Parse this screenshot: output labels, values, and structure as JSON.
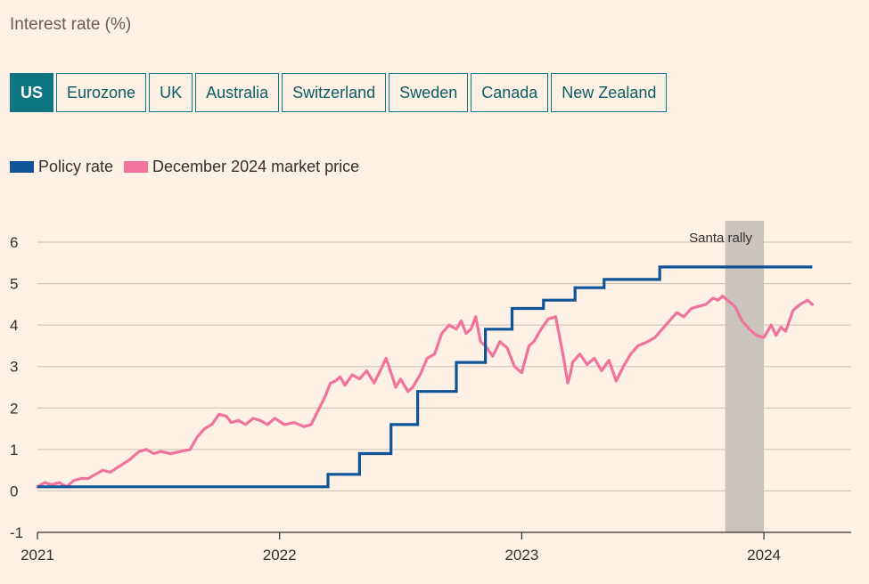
{
  "title": "Interest rate (%)",
  "tabs": [
    {
      "label": "US",
      "active": true
    },
    {
      "label": "Eurozone",
      "active": false
    },
    {
      "label": "UK",
      "active": false
    },
    {
      "label": "Australia",
      "active": false
    },
    {
      "label": "Switzerland",
      "active": false
    },
    {
      "label": "Sweden",
      "active": false
    },
    {
      "label": "Canada",
      "active": false
    },
    {
      "label": "New Zealand",
      "active": false
    }
  ],
  "colors": {
    "background": "#fdf0e4",
    "policy": "#0f5499",
    "market": "#f0739c",
    "shade": "#cbc3bd",
    "grid": "#ccc1b7",
    "tab_active": "#0d7680"
  },
  "chart_data": {
    "type": "line",
    "title": "Interest rate (%)",
    "xlabel": "",
    "ylabel": "",
    "xlim": [
      2021.0,
      2024.25
    ],
    "ylim": [
      -1,
      6
    ],
    "yticks": [
      -1,
      0,
      1,
      2,
      3,
      4,
      5,
      6
    ],
    "ytick_labels": [
      "-1",
      "0",
      "1",
      "2",
      "3",
      "4",
      "5",
      "6"
    ],
    "xticks": [
      2021,
      2022,
      2023,
      2024
    ],
    "xtick_labels": [
      "2021",
      "2022",
      "2023",
      "2024"
    ],
    "grid": true,
    "legend_position": "top-left",
    "annotations": [
      {
        "text": "Santa rally",
        "x_start": 2023.84,
        "x_end": 2024.0
      }
    ],
    "series": [
      {
        "name": "Policy rate",
        "style": "step",
        "x": [
          2021.0,
          2022.2,
          2022.33,
          2022.46,
          2022.57,
          2022.73,
          2022.85,
          2022.96,
          2023.09,
          2023.22,
          2023.34,
          2023.57,
          2024.2
        ],
        "values": [
          0.1,
          0.4,
          0.9,
          1.6,
          2.4,
          3.1,
          3.9,
          4.4,
          4.6,
          4.9,
          5.1,
          5.4,
          5.4
        ]
      },
      {
        "name": "December 2024 market price",
        "style": "line",
        "x": [
          2021.0,
          2021.03,
          2021.06,
          2021.09,
          2021.12,
          2021.15,
          2021.18,
          2021.21,
          2021.24,
          2021.27,
          2021.3,
          2021.34,
          2021.38,
          2021.42,
          2021.45,
          2021.48,
          2021.51,
          2021.55,
          2021.59,
          2021.63,
          2021.66,
          2021.69,
          2021.72,
          2021.75,
          2021.78,
          2021.8,
          2021.83,
          2021.86,
          2021.89,
          2021.92,
          2021.95,
          2021.98,
          2022.02,
          2022.06,
          2022.1,
          2022.13,
          2022.16,
          2022.19,
          2022.21,
          2022.23,
          2022.25,
          2022.27,
          2022.3,
          2022.33,
          2022.36,
          2022.39,
          2022.42,
          2022.44,
          2022.46,
          2022.48,
          2022.5,
          2022.53,
          2022.55,
          2022.58,
          2022.61,
          2022.64,
          2022.67,
          2022.7,
          2022.73,
          2022.75,
          2022.77,
          2022.79,
          2022.81,
          2022.83,
          2022.85,
          2022.88,
          2022.91,
          2022.94,
          2022.97,
          2023.0,
          2023.03,
          2023.05,
          2023.08,
          2023.11,
          2023.14,
          2023.17,
          2023.19,
          2023.2,
          2023.21,
          2023.24,
          2023.27,
          2023.3,
          2023.33,
          2023.36,
          2023.39,
          2023.42,
          2023.45,
          2023.48,
          2023.52,
          2023.55,
          2023.58,
          2023.61,
          2023.64,
          2023.67,
          2023.7,
          2023.73,
          2023.76,
          2023.79,
          2023.81,
          2023.83,
          2023.85,
          2023.88,
          2023.91,
          2023.94,
          2023.97,
          2024.0,
          2024.03,
          2024.05,
          2024.07,
          2024.09,
          2024.12,
          2024.15,
          2024.18,
          2024.2
        ],
        "values": [
          0.1,
          0.2,
          0.15,
          0.2,
          0.1,
          0.25,
          0.3,
          0.3,
          0.4,
          0.5,
          0.45,
          0.6,
          0.75,
          0.95,
          1.0,
          0.9,
          0.95,
          0.9,
          0.95,
          1.0,
          1.3,
          1.5,
          1.6,
          1.85,
          1.8,
          1.65,
          1.7,
          1.6,
          1.75,
          1.7,
          1.6,
          1.75,
          1.6,
          1.65,
          1.55,
          1.6,
          1.95,
          2.3,
          2.6,
          2.65,
          2.75,
          2.55,
          2.8,
          2.7,
          2.9,
          2.6,
          2.95,
          3.2,
          2.85,
          2.5,
          2.7,
          2.4,
          2.5,
          2.8,
          3.2,
          3.3,
          3.8,
          4.0,
          3.9,
          4.1,
          3.8,
          3.9,
          4.2,
          3.6,
          3.5,
          3.25,
          3.6,
          3.45,
          3.0,
          2.85,
          3.5,
          3.6,
          3.9,
          4.15,
          4.2,
          3.3,
          2.6,
          2.8,
          3.1,
          3.3,
          3.05,
          3.2,
          2.9,
          3.15,
          2.65,
          3.0,
          3.3,
          3.5,
          3.6,
          3.7,
          3.9,
          4.1,
          4.3,
          4.2,
          4.4,
          4.45,
          4.5,
          4.65,
          4.6,
          4.7,
          4.6,
          4.45,
          4.1,
          3.9,
          3.75,
          3.7,
          4.0,
          3.75,
          3.95,
          3.85,
          4.35,
          4.5,
          4.6,
          4.5
        ]
      }
    ]
  }
}
